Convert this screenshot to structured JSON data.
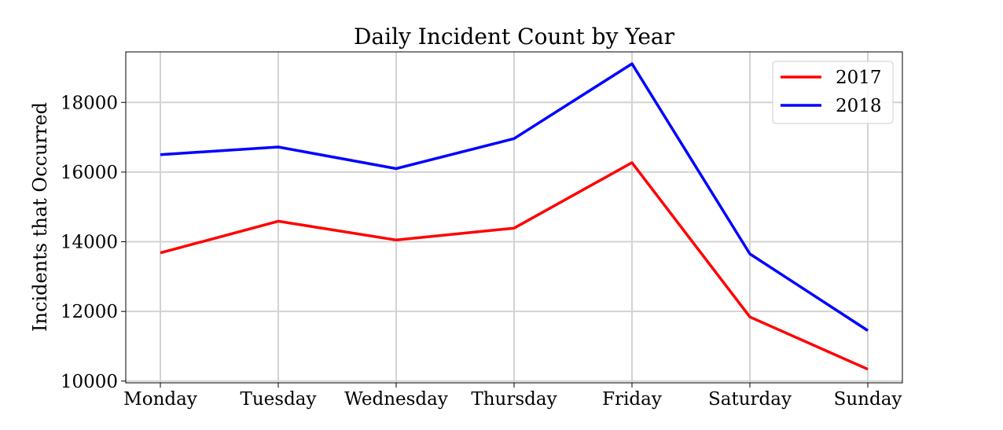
{
  "chart_data": {
    "type": "line",
    "title": "Daily Incident Count by Year",
    "xlabel": "",
    "ylabel": "Incidents that Occurred",
    "categories": [
      "Monday",
      "Tuesday",
      "Wednesday",
      "Thursday",
      "Friday",
      "Saturday",
      "Sunday"
    ],
    "ylim": [
      9950,
      19450
    ],
    "yticks": [
      "10000",
      "12000",
      "14000",
      "16000",
      "18000"
    ],
    "grid": true,
    "legend_position": "top-right",
    "series": [
      {
        "name": "2017",
        "color": "#ff0000",
        "values": [
          13680,
          14590,
          14050,
          14390,
          16270,
          11840,
          10340
        ]
      },
      {
        "name": "2018",
        "color": "#0000ff",
        "values": [
          16500,
          16720,
          16100,
          16960,
          19110,
          13650,
          11450
        ]
      }
    ]
  }
}
